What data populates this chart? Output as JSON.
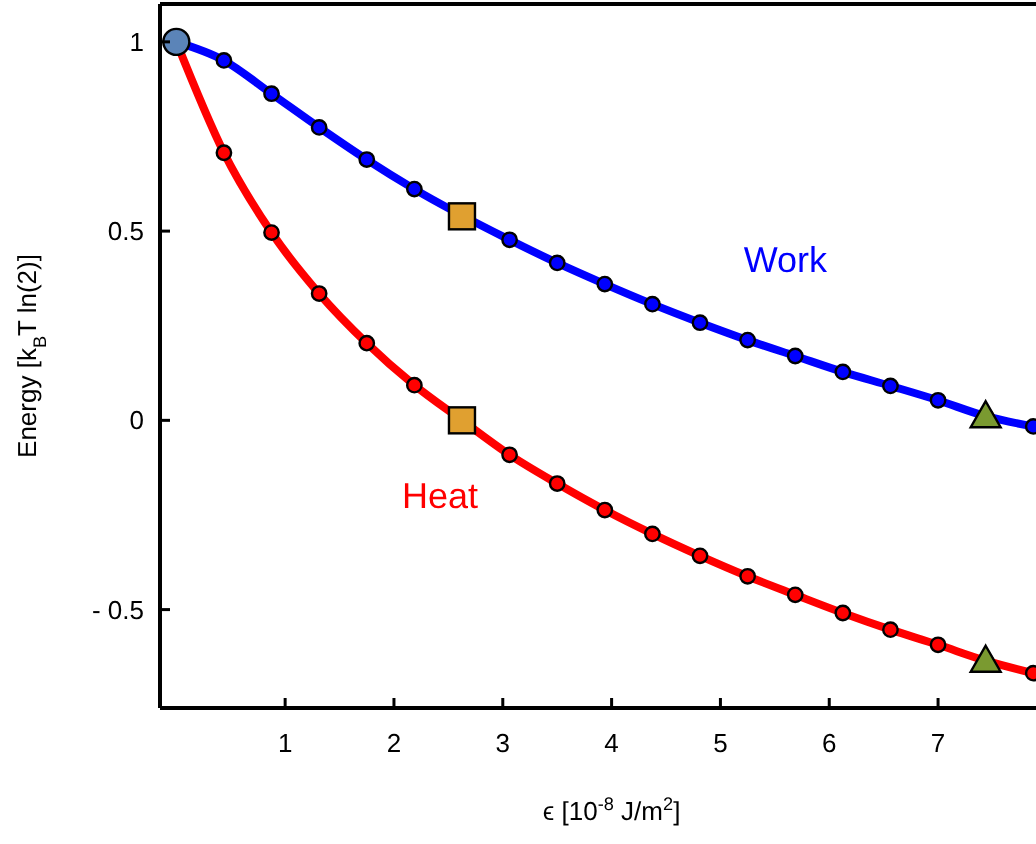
{
  "chart_data": {
    "type": "line",
    "xlabel": "ϵ [10$^{-8}$ J/m$^{2}$]",
    "ylabel": "Energy [k$_{B}$T ln(2)]",
    "x": [
      0,
      0.4375,
      0.875,
      1.3125,
      1.75,
      2.1875,
      2.625,
      3.0625,
      3.5,
      3.9375,
      4.375,
      4.8125,
      5.25,
      5.6875,
      6.125,
      6.5625,
      7,
      7.4375,
      7.875
    ],
    "xlim": [
      -0.15,
      7.9
    ],
    "xticks": [
      1,
      2,
      3,
      4,
      5,
      6,
      7
    ],
    "ylim": [
      -0.76,
      1.1
    ],
    "yticks": [
      {
        "value": -0.5,
        "label": "- 0.5"
      },
      0,
      0.5,
      1
    ],
    "grid": false,
    "legend": false,
    "marker": "circle",
    "line_style": "solid",
    "series": [
      {
        "name": "Work",
        "color": "#0000ff",
        "values": [
          1,
          0.951,
          0.863,
          0.774,
          0.689,
          0.611,
          null,
          0.477,
          0.416,
          0.36,
          0.307,
          0.258,
          0.212,
          0.17,
          0.128,
          0.091,
          0.053,
          0.011,
          -0.016
        ]
      },
      {
        "name": "Heat",
        "color": "#ff0000",
        "values": [
          1,
          0.707,
          0.496,
          0.335,
          0.204,
          0.093,
          0,
          -0.091,
          -0.167,
          -0.237,
          -0.3,
          -0.358,
          -0.412,
          -0.461,
          -0.509,
          -0.553,
          -0.593,
          -0.635,
          -0.668
        ]
      },
      {
        "type": "scatter",
        "marker": "circle",
        "color": "#5b84b8",
        "x": [
          0
        ],
        "values": [
          1
        ]
      },
      {
        "type": "scatter",
        "marker": "square",
        "color": "#e0a030",
        "x": [
          2.625,
          2.625
        ],
        "values": [
          0.539,
          0
        ]
      },
      {
        "type": "scatter",
        "marker": "triangle",
        "color": "#7a9a30",
        "x": [
          7.4375,
          7.4375
        ],
        "values": [
          0.011,
          -0.635
        ]
      }
    ]
  }
}
